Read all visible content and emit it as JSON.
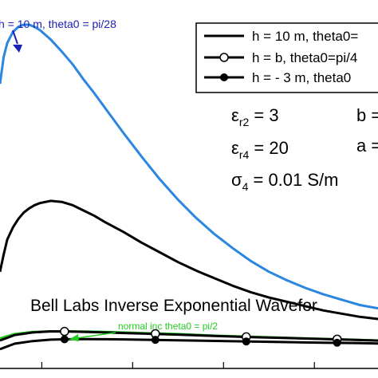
{
  "chart_data": {
    "type": "line",
    "title": "",
    "xlabel": "",
    "ylabel": "",
    "xlim": [
      0.04,
      4.2
    ],
    "ylim": [
      -0.028,
      0.315
    ],
    "grid": false,
    "legend_position": "top-right",
    "legend": [
      {
        "label": "h = 10 m, theta0=",
        "marker": "none"
      },
      {
        "label": "h = b, theta0=pi/4",
        "marker": "open-circle"
      },
      {
        "label": "h = - 3 m, theta0",
        "marker": "filled-circle"
      }
    ],
    "text_labels": {
      "eps_r2": "εr2 = 3",
      "eps_r4": "εr4 = 20",
      "sigma4": "σ4 = 0.01 S/m",
      "b_partial": "b =",
      "a_partial": "a =",
      "waveform_title": "Bell Labs Inverse Exponential Wavefor"
    },
    "annotations": [
      {
        "text": "h = 10 m, theta0 = pi/28",
        "color": "#1a22b5",
        "points_to": [
          0.4,
          0.273
        ]
      },
      {
        "text": "normal inc theta0 = pi/2",
        "color": "#22cc22",
        "points_to": [
          0.75,
          0.006
        ]
      }
    ],
    "series": [
      {
        "name": "h = 10 m, theta0 = pi/28",
        "color": "#2b86e0",
        "marker": "none",
        "x": [
          0.04,
          0.08,
          0.12,
          0.18,
          0.24,
          0.3,
          0.36,
          0.42,
          0.48,
          0.6,
          0.72,
          0.84,
          0.96,
          1.08,
          1.2,
          1.4,
          1.6,
          1.8,
          2.0,
          2.2,
          2.4,
          2.6,
          2.8,
          3.0,
          3.2,
          3.4,
          3.6,
          3.8,
          4.0,
          4.2
        ],
        "y": [
          0.237,
          0.262,
          0.275,
          0.285,
          0.29,
          0.292,
          0.292,
          0.29,
          0.287,
          0.278,
          0.267,
          0.255,
          0.241,
          0.228,
          0.214,
          0.191,
          0.169,
          0.148,
          0.129,
          0.112,
          0.097,
          0.084,
          0.072,
          0.062,
          0.054,
          0.047,
          0.041,
          0.036,
          0.031,
          0.028
        ]
      },
      {
        "name": "h = 10 m, theta0=",
        "color": "#000000",
        "marker": "none",
        "x": [
          0.04,
          0.08,
          0.12,
          0.18,
          0.24,
          0.3,
          0.36,
          0.42,
          0.48,
          0.6,
          0.72,
          0.84,
          0.96,
          1.08,
          1.2,
          1.4,
          1.6,
          1.8,
          2.0,
          2.2,
          2.4,
          2.6,
          2.8,
          3.0,
          3.2,
          3.4,
          3.6,
          3.8,
          4.0,
          4.2
        ],
        "y": [
          0.062,
          0.078,
          0.092,
          0.103,
          0.111,
          0.117,
          0.121,
          0.124,
          0.126,
          0.128,
          0.127,
          0.124,
          0.119,
          0.114,
          0.108,
          0.099,
          0.089,
          0.08,
          0.071,
          0.063,
          0.056,
          0.049,
          0.043,
          0.038,
          0.034,
          0.03,
          0.026,
          0.023,
          0.02,
          0.018
        ]
      },
      {
        "name": "normal inc theta0 = pi/2",
        "color": "#22cc22",
        "marker": "none",
        "x": [
          0.04,
          0.2,
          0.4,
          0.6,
          0.8,
          1.0,
          1.2,
          1.4,
          1.6,
          2.0,
          2.4,
          2.8,
          3.2,
          3.6,
          4.0,
          4.2
        ],
        "y": [
          0.0,
          0.004,
          0.006,
          0.0065,
          0.0065,
          0.0063,
          0.006,
          0.0055,
          0.005,
          0.004,
          0.0025,
          0.0015,
          0.0005,
          -0.0005,
          -0.0015,
          -0.002
        ]
      },
      {
        "name": "h = b, theta0=pi/4",
        "color": "#000000",
        "marker": "open-circle",
        "x": [
          0.04,
          0.2,
          0.4,
          0.6,
          0.8,
          1.0,
          1.2,
          1.4,
          1.6,
          2.0,
          2.4,
          2.8,
          3.2,
          3.6,
          4.0,
          4.2
        ],
        "y": [
          -0.002,
          0.003,
          0.0055,
          0.0065,
          0.0063,
          0.006,
          0.0055,
          0.005,
          0.0045,
          0.0035,
          0.0022,
          0.0012,
          0.0003,
          -0.0006,
          -0.0016,
          -0.0021
        ],
        "marker_x": [
          0.75,
          1.75,
          2.75,
          3.75
        ],
        "marker_y": [
          0.0064,
          0.0043,
          0.0014,
          -0.0008
        ]
      },
      {
        "name": "h = - 3 m, theta0",
        "color": "#000000",
        "marker": "filled-circle",
        "x": [
          0.04,
          0.2,
          0.4,
          0.6,
          0.8,
          1.0,
          1.2,
          1.4,
          1.6,
          2.0,
          2.4,
          2.8,
          3.2,
          3.6,
          4.0,
          4.2
        ],
        "y": [
          -0.01,
          -0.005,
          -0.0025,
          -0.0012,
          -0.0008,
          -0.0007,
          -0.0008,
          -0.001,
          -0.0013,
          -0.0018,
          -0.0024,
          -0.003,
          -0.0035,
          -0.004,
          -0.0045,
          -0.0048
        ],
        "marker_x": [
          0.75,
          1.75,
          2.75,
          3.75
        ],
        "marker_y": [
          -0.0009,
          -0.0014,
          -0.0029,
          -0.0041
        ]
      }
    ]
  }
}
